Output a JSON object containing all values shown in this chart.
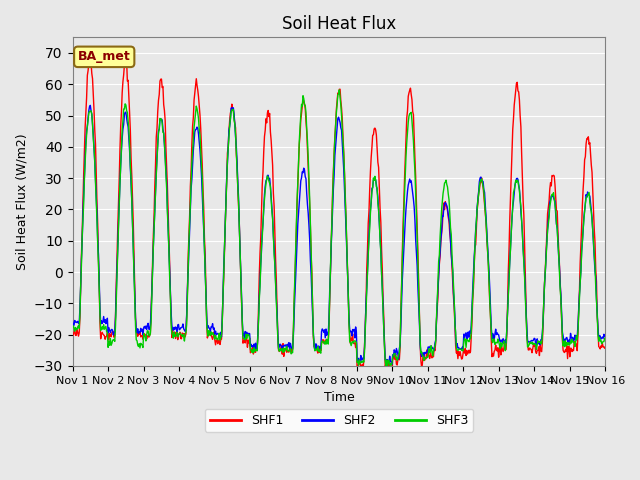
{
  "title": "Soil Heat Flux",
  "ylabel": "Soil Heat Flux (W/m2)",
  "xlabel": "Time",
  "legend_label": "BA_met",
  "series_labels": [
    "SHF1",
    "SHF2",
    "SHF3"
  ],
  "series_colors": [
    "#FF0000",
    "#0000FF",
    "#00CC00"
  ],
  "ylim": [
    -30,
    75
  ],
  "yticks": [
    -30,
    -20,
    -10,
    0,
    10,
    20,
    30,
    40,
    50,
    60,
    70
  ],
  "background_color": "#E8E8E8",
  "plot_bg_color": "#E8E8E8",
  "n_days": 15,
  "points_per_day": 48,
  "day_peaks_shf1": [
    68.0,
    67.0,
    61.0,
    60.0,
    53.0,
    52.0,
    54.0,
    58.0,
    46.0,
    59.0,
    22.0,
    29.0,
    60.0,
    31.0,
    43.0
  ],
  "day_peaks_shf2": [
    53.0,
    51.0,
    49.0,
    46.0,
    53.0,
    31.0,
    33.0,
    49.0,
    30.0,
    30.0,
    22.0,
    30.0,
    30.0,
    25.0,
    25.0
  ],
  "day_peaks_shf3": [
    52.0,
    54.0,
    49.0,
    52.0,
    52.0,
    30.0,
    56.0,
    57.0,
    30.0,
    51.0,
    29.0,
    29.0,
    30.0,
    25.0,
    25.0
  ],
  "night_min_shf1": [
    -20.0,
    -20.0,
    -20.0,
    -20.0,
    -22.0,
    -25.0,
    -25.0,
    -22.0,
    -30.0,
    -28.0,
    -26.0,
    -25.0,
    -25.0,
    -25.0,
    -24.0
  ],
  "night_min_shf2": [
    -16.0,
    -19.0,
    -18.0,
    -18.0,
    -20.0,
    -24.0,
    -24.0,
    -19.0,
    -28.0,
    -26.0,
    -24.0,
    -20.0,
    -22.0,
    -22.0,
    -21.0
  ],
  "night_min_shf3": [
    -18.0,
    -23.0,
    -20.0,
    -20.0,
    -21.0,
    -25.0,
    -25.0,
    -22.0,
    -29.0,
    -27.0,
    -25.0,
    -22.0,
    -23.0,
    -23.0,
    -22.0
  ],
  "line_width": 1.0
}
